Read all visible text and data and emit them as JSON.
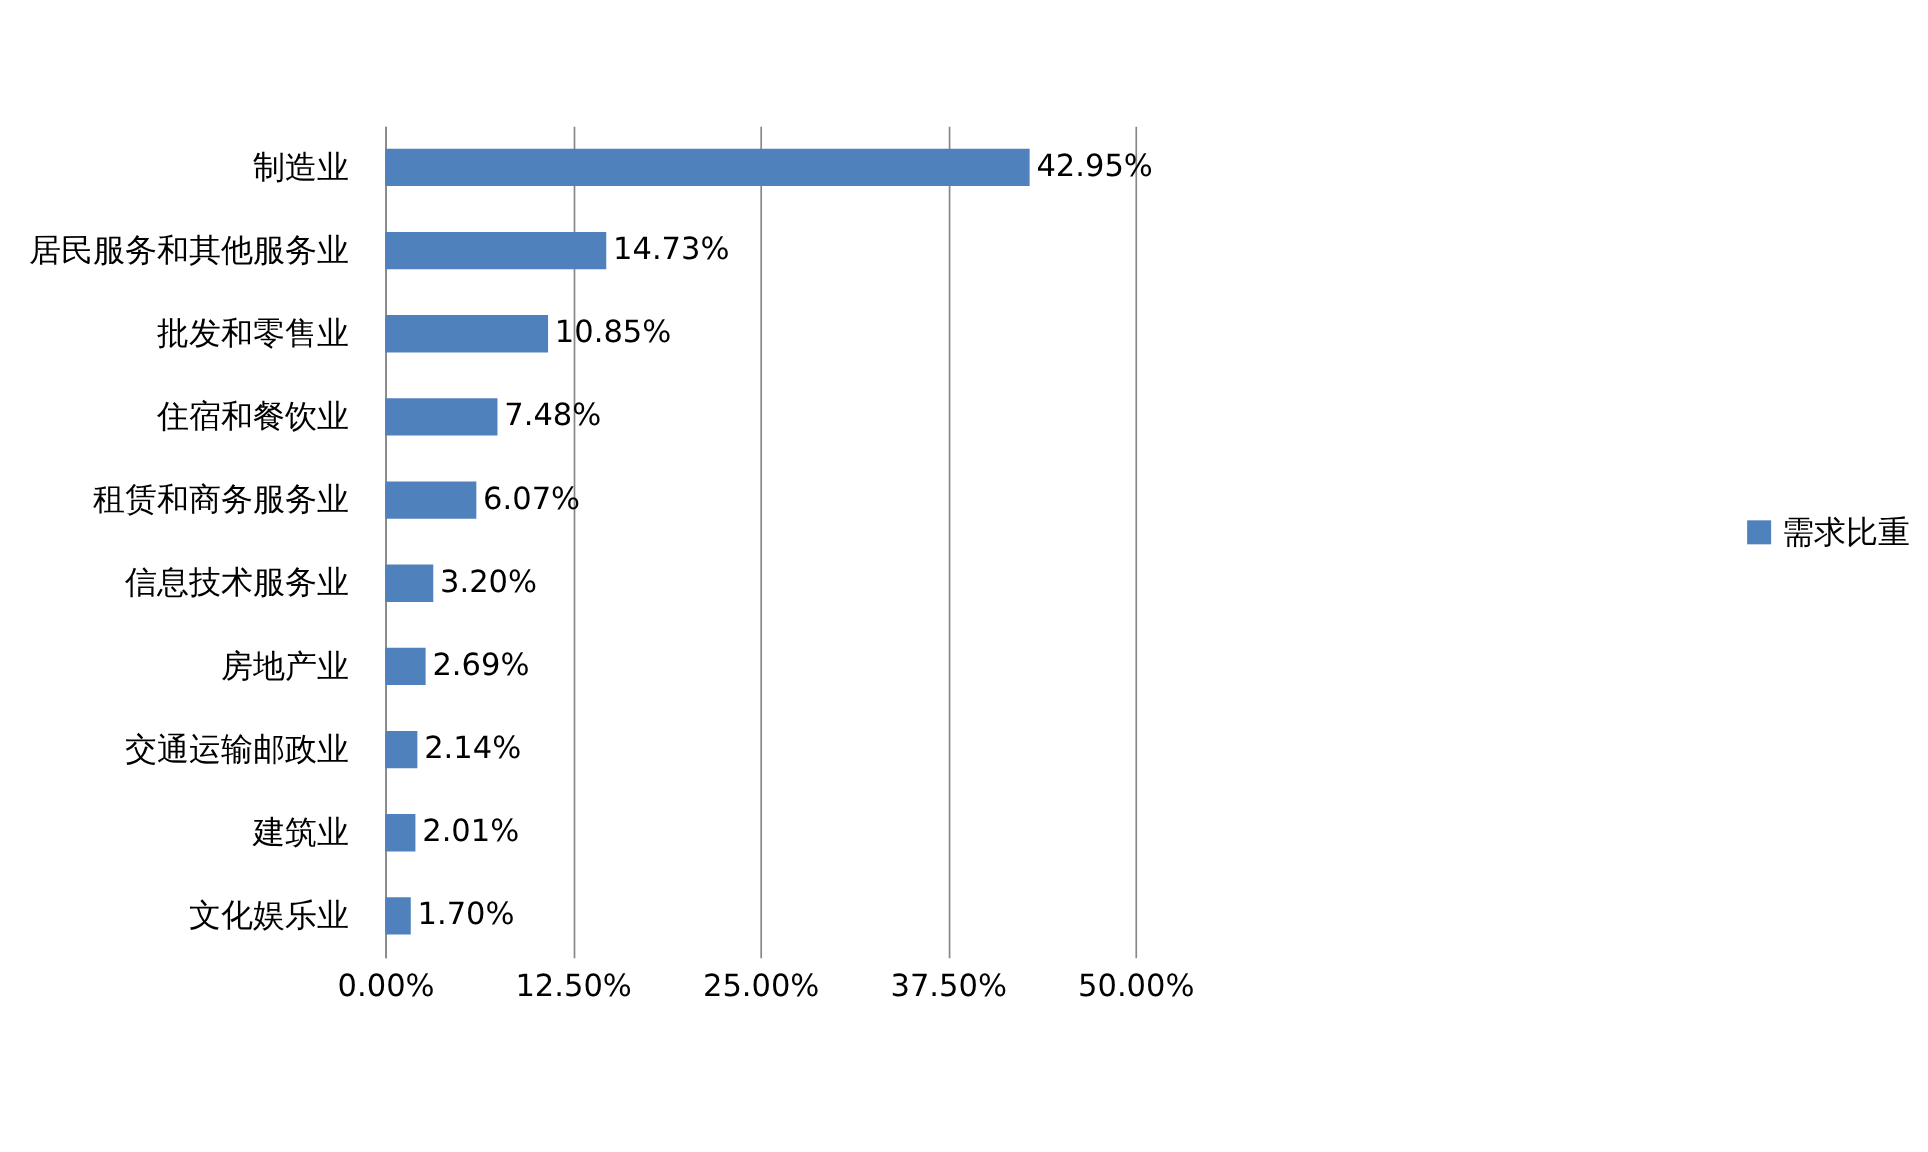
{
  "chart_data": {
    "type": "bar",
    "orientation": "horizontal",
    "categories": [
      "制造业",
      "居民服务和其他服务业",
      "批发和零售业",
      "住宿和餐饮业",
      "租赁和商务服务业",
      "信息技术服务业",
      "房地产业",
      "交通运输邮政业",
      "建筑业",
      "文化娱乐业"
    ],
    "series": [
      {
        "name": "需求比重",
        "color": "#4f81bd",
        "values": [
          42.95,
          14.73,
          10.85,
          7.48,
          6.07,
          3.2,
          2.69,
          2.14,
          2.01,
          1.7
        ],
        "value_labels": [
          "42.95%",
          "14.73%",
          "10.85%",
          "7.48%",
          "6.07%",
          "3.20%",
          "2.69%",
          "2.14%",
          "2.01%",
          "1.70%"
        ]
      }
    ],
    "xlim": [
      0,
      50
    ],
    "xticks": [
      {
        "value": 0,
        "label": "0.00%"
      },
      {
        "value": 12.5,
        "label": "12.50%"
      },
      {
        "value": 25,
        "label": "25.00%"
      },
      {
        "value": 37.5,
        "label": "37.50%"
      },
      {
        "value": 50,
        "label": "50.00%"
      }
    ],
    "grid": "x",
    "legend": "right"
  }
}
